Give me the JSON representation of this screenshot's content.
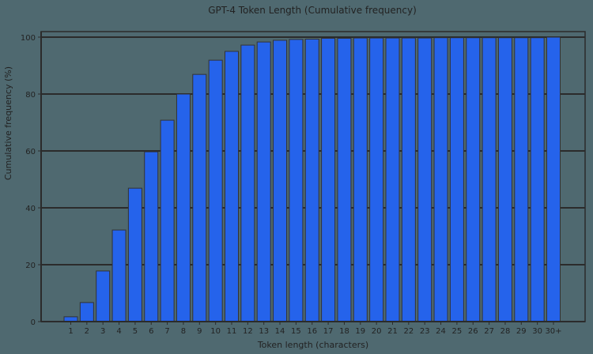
{
  "chart_data": {
    "type": "bar",
    "title": "GPT-4 Token Length (Cumulative frequency)",
    "xlabel": "Token length (characters)",
    "ylabel": "Cumulative frequency (%)",
    "ylim": [
      0,
      100
    ],
    "yticks": [
      0,
      20,
      40,
      60,
      80,
      100
    ],
    "grid": true,
    "legend": null,
    "categories": [
      "1",
      "2",
      "3",
      "4",
      "5",
      "6",
      "7",
      "8",
      "9",
      "10",
      "11",
      "12",
      "13",
      "14",
      "15",
      "16",
      "17",
      "18",
      "19",
      "20",
      "21",
      "22",
      "23",
      "24",
      "25",
      "26",
      "27",
      "28",
      "29",
      "30",
      "30+"
    ],
    "values": [
      1.7,
      6.7,
      17.8,
      32.2,
      46.9,
      59.7,
      70.8,
      80.0,
      86.9,
      91.9,
      95.0,
      97.2,
      98.3,
      98.9,
      99.2,
      99.3,
      99.6,
      99.6,
      99.7,
      99.7,
      99.7,
      99.7,
      99.7,
      99.8,
      99.8,
      99.8,
      99.8,
      99.8,
      99.8,
      99.8,
      100.0
    ],
    "colors": {
      "bar": "#2563eb",
      "background": "#4f6970",
      "grid": "#2b2b2b",
      "text": "#222222"
    }
  }
}
